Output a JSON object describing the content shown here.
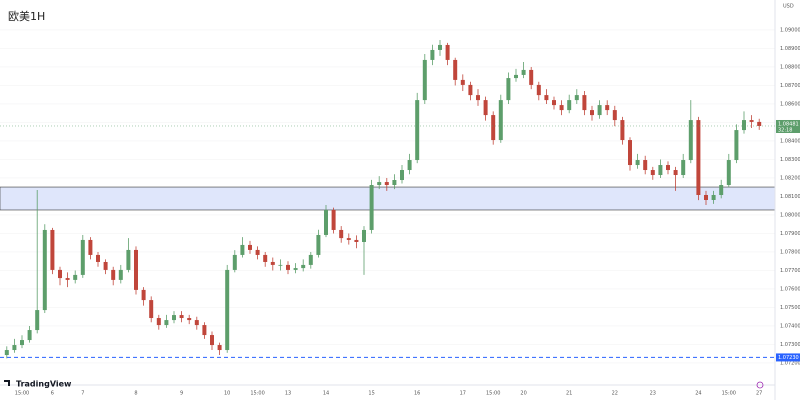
{
  "chart_data": {
    "type": "candlestick",
    "title": "欧美1H",
    "currency": "USD",
    "brand": "TradingView",
    "up_color": "#5d9e6b",
    "down_color": "#c0463b",
    "categories": [
      null,
      null,
      "15:00",
      null,
      null,
      null,
      "6",
      null,
      null,
      null,
      "7",
      null,
      null,
      null,
      null,
      null,
      null,
      "8",
      null,
      null,
      null,
      null,
      null,
      "9",
      null,
      null,
      null,
      null,
      null,
      "10",
      null,
      null,
      null,
      "15:00",
      null,
      null,
      null,
      "13",
      null,
      null,
      null,
      null,
      "14",
      null,
      null,
      null,
      null,
      null,
      "15",
      null,
      null,
      null,
      null,
      null,
      "16",
      null,
      null,
      null,
      null,
      null,
      "17",
      null,
      null,
      null,
      "15:00",
      null,
      null,
      null,
      "20",
      null,
      null,
      null,
      null,
      null,
      "21",
      null,
      null,
      null,
      null,
      null,
      "22",
      null,
      null,
      null,
      null,
      "23",
      null,
      null,
      null,
      null,
      null,
      "24",
      null,
      null,
      null,
      "15:00",
      null,
      null,
      null,
      "27"
    ],
    "open": [
      1.07243,
      1.0727,
      1.07297,
      1.07324,
      1.07378,
      1.07486,
      1.07919,
      1.07703,
      1.07659,
      1.07649,
      1.07676,
      1.07865,
      1.07784,
      1.07746,
      1.07703,
      1.07649,
      1.07703,
      1.07811,
      1.07595,
      1.0754,
      1.07443,
      1.07405,
      1.07432,
      1.07459,
      1.07443,
      1.07432,
      1.07405,
      1.07351,
      1.07297,
      1.0727,
      1.07703,
      1.07784,
      1.07838,
      1.07811,
      1.07784,
      1.07746,
      1.0773,
      1.0773,
      1.07703,
      1.07713,
      1.0773,
      1.07784,
      1.07892,
      1.08027,
      1.07919,
      1.07875,
      1.07865,
      1.07854,
      1.07919,
      1.08162,
      1.08178,
      1.08162,
      1.08189,
      1.08243,
      1.08297,
      1.08621,
      1.08838,
      1.08892,
      1.08919,
      1.08838,
      1.0873,
      1.08703,
      1.08648,
      1.08621,
      1.0854,
      1.08405,
      1.08621,
      1.0874,
      1.08757,
      1.08784,
      1.08703,
      1.08648,
      1.08621,
      1.08594,
      1.08567,
      1.08621,
      1.08648,
      1.08567,
      1.0854,
      1.08594,
      1.08567,
      1.08513,
      1.08405,
      1.0827,
      1.08297,
      1.08243,
      1.08216,
      1.0827,
      1.08243,
      1.08216,
      1.08297,
      1.08513,
      1.08108,
      1.08081,
      1.08108,
      1.08162,
      1.08297,
      1.08459,
      1.08513,
      1.08503
    ],
    "high": [
      1.0729,
      1.0733,
      1.0735,
      1.074,
      1.08135,
      1.0795,
      1.0793,
      1.0772,
      1.0769,
      1.077,
      1.07892,
      1.0788,
      1.078,
      1.0776,
      1.0772,
      1.0773,
      1.07875,
      1.0783,
      1.0761,
      1.0756,
      1.0746,
      1.0746,
      1.0748,
      1.0748,
      1.0746,
      1.0745,
      1.0742,
      1.0737,
      1.0731,
      1.0773,
      1.0781,
      1.0788,
      1.0786,
      1.0783,
      1.078,
      1.0777,
      1.0776,
      1.0775,
      1.0774,
      1.0776,
      1.078,
      1.0792,
      1.08054,
      1.0804,
      1.0794,
      1.079,
      1.0789,
      1.0794,
      1.0819,
      1.0821,
      1.082,
      1.0822,
      1.0827,
      1.0833,
      1.0866,
      1.0887,
      1.0892,
      1.08946,
      1.0893,
      1.0885,
      1.0876,
      1.0872,
      1.0868,
      1.0864,
      1.0856,
      1.0865,
      1.0877,
      1.0879,
      1.08827,
      1.088,
      1.0872,
      1.0868,
      1.0864,
      1.0862,
      1.0865,
      1.0868,
      1.0867,
      1.0859,
      1.0862,
      1.0862,
      1.0859,
      1.0853,
      1.0842,
      1.0833,
      1.0832,
      1.0826,
      1.083,
      1.0829,
      1.0826,
      1.0833,
      1.08621,
      1.0853,
      1.0813,
      1.0813,
      1.0819,
      1.0833,
      1.0849,
      1.0856,
      1.0854,
      1.0852
    ],
    "low": [
      1.07225,
      1.07255,
      1.0728,
      1.0731,
      1.0736,
      1.0747,
      1.0768,
      1.0762,
      1.0761,
      1.0763,
      1.0766,
      1.0776,
      1.0772,
      1.0768,
      1.0762,
      1.0763,
      1.0769,
      1.0757,
      1.0751,
      1.0742,
      1.0738,
      1.0739,
      1.07415,
      1.0742,
      1.0741,
      1.0738,
      1.0733,
      1.0727,
      1.07243,
      1.07255,
      1.0769,
      1.0777,
      1.0779,
      1.0776,
      1.0772,
      1.077,
      1.077,
      1.0768,
      1.07685,
      1.07695,
      1.0771,
      1.0777,
      1.0788,
      1.079,
      1.0785,
      1.0784,
      1.0782,
      1.07676,
      1.079,
      1.0814,
      1.0813,
      1.0814,
      1.0817,
      1.0822,
      1.0828,
      1.086,
      1.0881,
      1.0886,
      1.0881,
      1.087,
      1.0867,
      1.0862,
      1.0859,
      1.0851,
      1.0838,
      1.0839,
      1.086,
      1.0872,
      1.0874,
      1.0868,
      1.0862,
      1.086,
      1.0857,
      1.0854,
      1.0855,
      1.086,
      1.0854,
      1.0851,
      1.0852,
      1.0854,
      1.0848,
      1.0838,
      1.0824,
      1.0825,
      1.0822,
      1.0819,
      1.082,
      1.0822,
      1.0813,
      1.082,
      1.0828,
      1.0808,
      1.08054,
      1.0806,
      1.0809,
      1.0815,
      1.0828,
      1.0844,
      1.0847,
      1.0846
    ],
    "close": [
      1.0727,
      1.07297,
      1.07324,
      1.07378,
      1.07486,
      1.07919,
      1.07703,
      1.07659,
      1.07649,
      1.07676,
      1.07865,
      1.07784,
      1.07746,
      1.07703,
      1.07649,
      1.07703,
      1.07811,
      1.07595,
      1.0754,
      1.07443,
      1.07405,
      1.07432,
      1.07459,
      1.07443,
      1.07432,
      1.07405,
      1.07351,
      1.07297,
      1.0727,
      1.07703,
      1.07784,
      1.07838,
      1.07811,
      1.07784,
      1.07746,
      1.0773,
      1.0773,
      1.07703,
      1.07713,
      1.0773,
      1.07784,
      1.07892,
      1.08027,
      1.07919,
      1.07875,
      1.07865,
      1.07854,
      1.07919,
      1.08162,
      1.08178,
      1.08162,
      1.08189,
      1.08243,
      1.08297,
      1.08621,
      1.08838,
      1.08892,
      1.08919,
      1.08838,
      1.0873,
      1.08703,
      1.08648,
      1.08621,
      1.0854,
      1.08405,
      1.08621,
      1.0874,
      1.08757,
      1.08784,
      1.08703,
      1.08648,
      1.08621,
      1.08594,
      1.08567,
      1.08621,
      1.08648,
      1.08567,
      1.0854,
      1.08594,
      1.08567,
      1.08513,
      1.08405,
      1.0827,
      1.08297,
      1.08243,
      1.08216,
      1.0827,
      1.08243,
      1.08216,
      1.08297,
      1.08513,
      1.08108,
      1.08081,
      1.08108,
      1.08162,
      1.08297,
      1.08459,
      1.08513,
      1.08503,
      1.08481
    ],
    "ylim": [
      1.07081,
      1.09162
    ],
    "yticks": [
      {
        "value": 1.09,
        "label": "1.09000"
      },
      {
        "value": 1.089,
        "label": "1.08900"
      },
      {
        "value": 1.088,
        "label": "1.08800"
      },
      {
        "value": 1.087,
        "label": "1.08700"
      },
      {
        "value": 1.086,
        "label": "1.08600"
      },
      {
        "value": 1.085,
        "label": "1.08500"
      },
      {
        "value": 1.084,
        "label": "1.08400"
      },
      {
        "value": 1.083,
        "label": "1.08300"
      },
      {
        "value": 1.082,
        "label": "1.08200"
      },
      {
        "value": 1.081,
        "label": "1.08100"
      },
      {
        "value": 1.08,
        "label": "1.08000"
      },
      {
        "value": 1.079,
        "label": "1.07900"
      },
      {
        "value": 1.078,
        "label": "1.07800"
      },
      {
        "value": 1.077,
        "label": "1.07700"
      },
      {
        "value": 1.076,
        "label": "1.07600"
      },
      {
        "value": 1.075,
        "label": "1.07500"
      },
      {
        "value": 1.074,
        "label": "1.07400"
      },
      {
        "value": 1.073,
        "label": "1.07300"
      },
      {
        "value": 1.072,
        "label": "1.07200"
      }
    ],
    "zone": [
      1.08027,
      1.08151
    ],
    "zone_color": "#dfe6fb",
    "support_line": {
      "value": 1.0723,
      "label": "1.07230"
    },
    "support_color": "#2962ff",
    "last_price": 1.08481,
    "countdown": "32:18"
  }
}
